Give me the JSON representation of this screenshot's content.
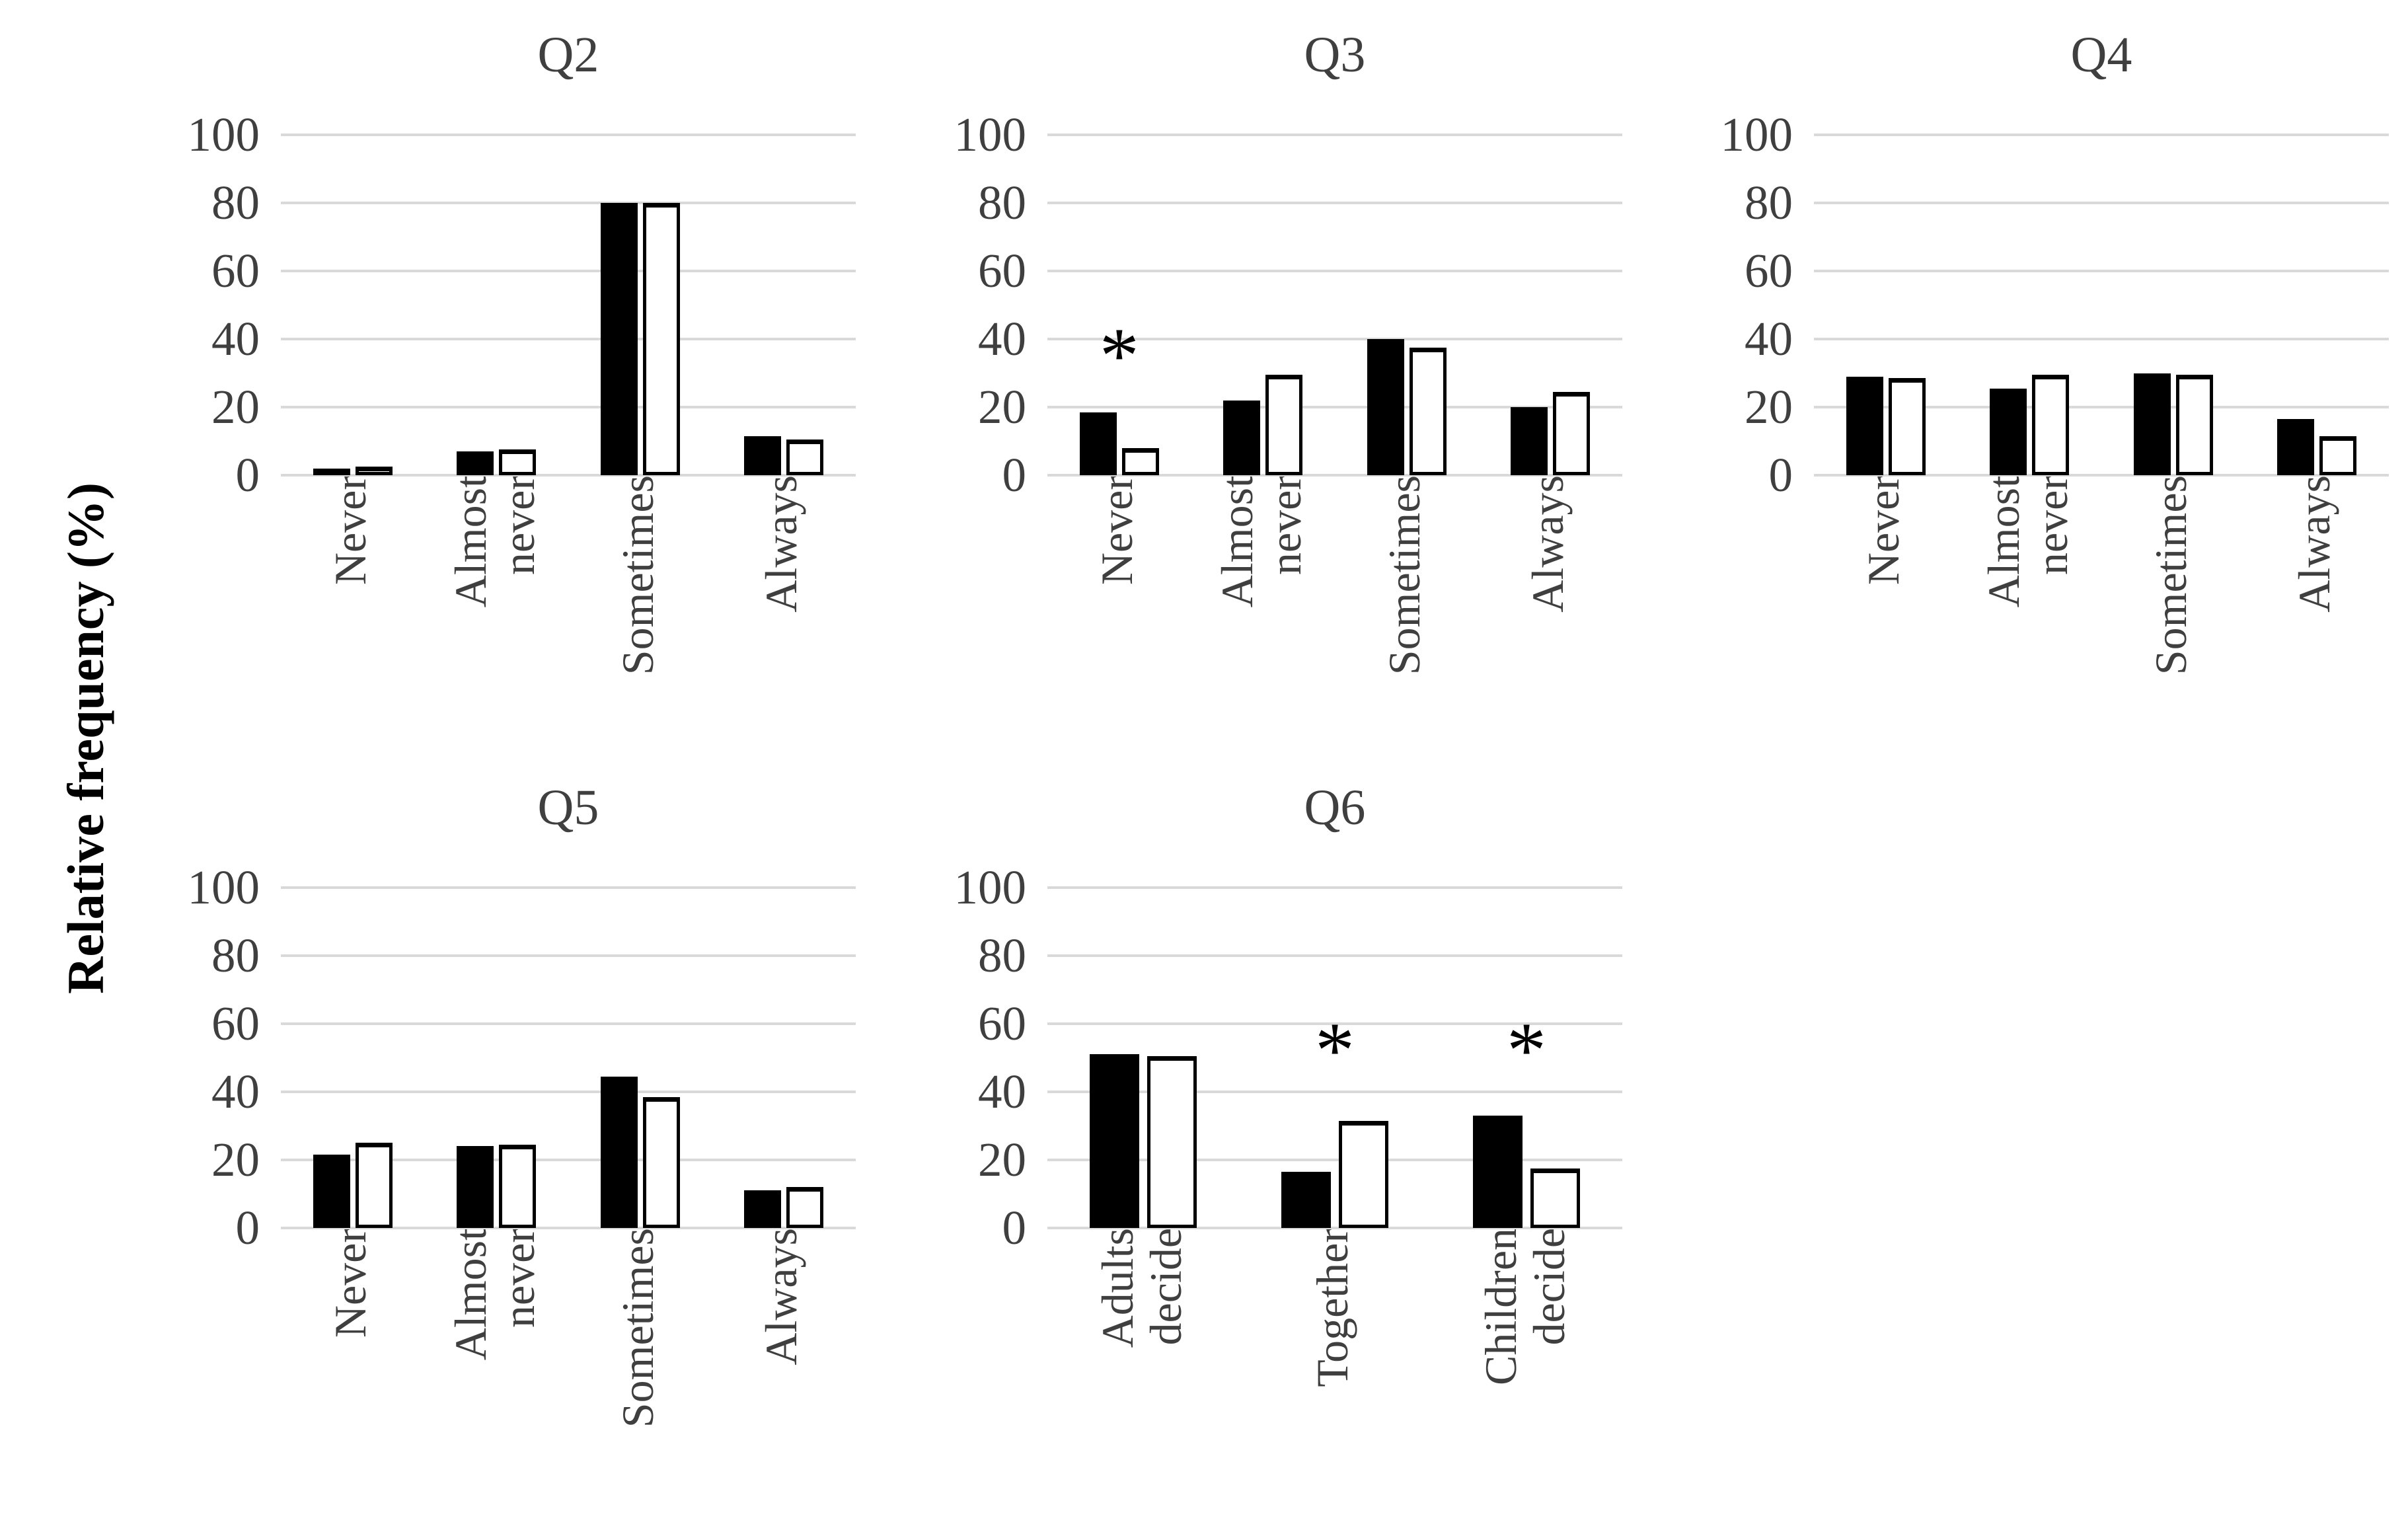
{
  "figure": {
    "y_axis_label": "Relative frequency (%)"
  },
  "y_axis": {
    "label": "Relative frequency (%)",
    "range": [
      0,
      100
    ],
    "ticks": [
      0,
      20,
      40,
      60,
      80,
      100
    ]
  },
  "chart_data": [
    {
      "type": "bar",
      "title": "Q2",
      "categories": [
        "Never",
        "Almost never",
        "Sometimes",
        "Always"
      ],
      "series": [
        {
          "name": "black",
          "values": [
            2,
            7,
            80,
            11.5
          ]
        },
        {
          "name": "white",
          "values": [
            2.5,
            7.5,
            80,
            10.5
          ]
        }
      ],
      "ylim": [
        0,
        100
      ],
      "yticks": [
        0,
        20,
        40,
        60,
        80,
        100
      ],
      "grid": true,
      "legend": "none",
      "annotations": []
    },
    {
      "type": "bar",
      "title": "Q3",
      "categories": [
        "Never",
        "Almost never",
        "Sometimes",
        "Always"
      ],
      "series": [
        {
          "name": "black",
          "values": [
            18.5,
            22,
            40,
            20
          ]
        },
        {
          "name": "white",
          "values": [
            8,
            29.5,
            37.5,
            24.5
          ]
        }
      ],
      "ylim": [
        0,
        100
      ],
      "yticks": [
        0,
        20,
        40,
        60,
        80,
        100
      ],
      "grid": true,
      "legend": "none",
      "annotations": [
        {
          "category_index": 0,
          "category": "Never",
          "symbol": "*",
          "y": 40
        }
      ]
    },
    {
      "type": "bar",
      "title": "Q4",
      "categories": [
        "Never",
        "Almost never",
        "Sometimes",
        "Always"
      ],
      "series": [
        {
          "name": "black",
          "values": [
            29,
            25.5,
            30,
            16.5
          ]
        },
        {
          "name": "white",
          "values": [
            28.5,
            29.5,
            29.5,
            11.5
          ]
        }
      ],
      "ylim": [
        0,
        100
      ],
      "yticks": [
        0,
        20,
        40,
        60,
        80,
        100
      ],
      "grid": true,
      "legend": "none",
      "annotations": []
    },
    {
      "type": "bar",
      "title": "Q5",
      "categories": [
        "Never",
        "Almost never",
        "Sometimes",
        "Always"
      ],
      "series": [
        {
          "name": "black",
          "values": [
            21.5,
            24,
            44.5,
            11
          ]
        },
        {
          "name": "white",
          "values": [
            25,
            24.5,
            38.5,
            12
          ]
        }
      ],
      "ylim": [
        0,
        100
      ],
      "yticks": [
        0,
        20,
        40,
        60,
        80,
        100
      ],
      "grid": true,
      "legend": "none",
      "annotations": []
    },
    {
      "type": "bar",
      "title": "Q6",
      "categories": [
        "Adults decide",
        "Together",
        "Children decide"
      ],
      "series": [
        {
          "name": "black",
          "values": [
            51,
            16.5,
            33
          ]
        },
        {
          "name": "white",
          "values": [
            50.5,
            31.5,
            17.5
          ]
        }
      ],
      "ylim": [
        0,
        100
      ],
      "yticks": [
        0,
        20,
        40,
        60,
        80,
        100
      ],
      "grid": true,
      "legend": "none",
      "annotations": [
        {
          "category_index": 1,
          "category": "Together",
          "symbol": "*",
          "y": 57
        },
        {
          "category_index": 2,
          "category": "Children decide",
          "symbol": "*",
          "y": 57
        }
      ]
    }
  ]
}
